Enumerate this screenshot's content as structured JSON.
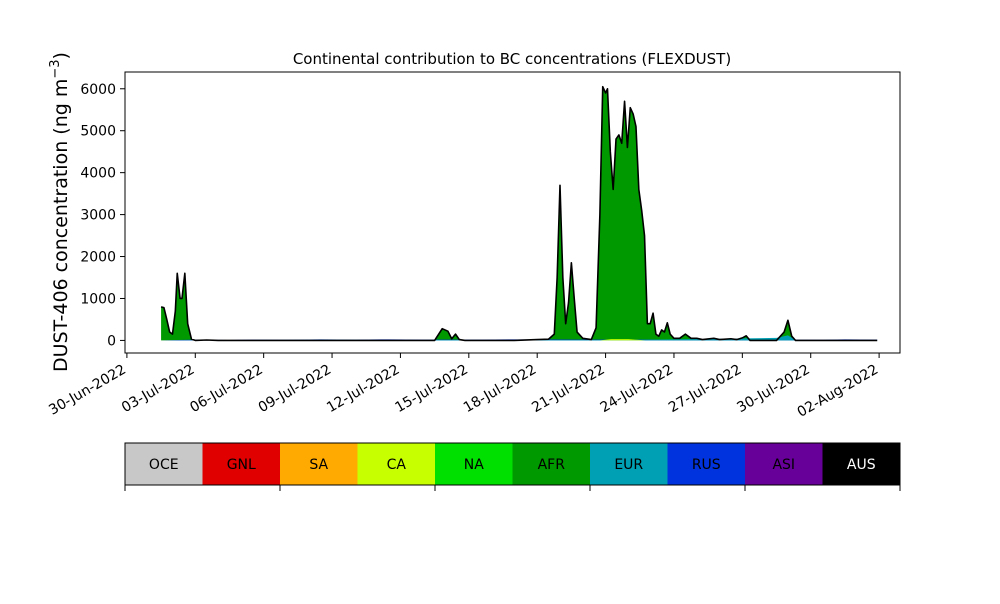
{
  "chart_data": {
    "type": "area",
    "title": "Continental contribution to BC concentrations (FLEXDUST)",
    "ylabel": "DUST-406 concentration (ng m",
    "ylabel_superscript": "−3",
    "ylabel_suffix": ")",
    "ylim": [
      -300,
      6400
    ],
    "yticks": [
      0,
      1000,
      2000,
      3000,
      4000,
      5000,
      6000
    ],
    "xlim": [
      "2022-06-29T22:00",
      "2022-08-02T22:00"
    ],
    "xticks": [
      "2022-06-30",
      "2022-07-03",
      "2022-07-06",
      "2022-07-09",
      "2022-07-12",
      "2022-07-15",
      "2022-07-18",
      "2022-07-21",
      "2022-07-24",
      "2022-07-27",
      "2022-07-30",
      "2022-08-02"
    ],
    "xtick_labels": [
      "30-Jun-2022",
      "03-Jul-2022",
      "06-Jul-2022",
      "09-Jul-2022",
      "12-Jul-2022",
      "15-Jul-2022",
      "18-Jul-2022",
      "21-Jul-2022",
      "24-Jul-2022",
      "27-Jul-2022",
      "30-Jul-2022",
      "02-Aug-2022"
    ],
    "grid": false,
    "legend": {
      "placement": "below",
      "entries": [
        {
          "name": "OCE",
          "color": "#c8c8c8",
          "text_color": "#000000"
        },
        {
          "name": "GNL",
          "color": "#e00000",
          "text_color": "#000000"
        },
        {
          "name": "SA",
          "color": "#ffaa00",
          "text_color": "#000000"
        },
        {
          "name": "CA",
          "color": "#c8ff00",
          "text_color": "#000000"
        },
        {
          "name": "NA",
          "color": "#00e000",
          "text_color": "#000000"
        },
        {
          "name": "AFR",
          "color": "#009a00",
          "text_color": "#000000"
        },
        {
          "name": "EUR",
          "color": "#00a0b4",
          "text_color": "#000000"
        },
        {
          "name": "RUS",
          "color": "#0033dd",
          "text_color": "#000000"
        },
        {
          "name": "ASI",
          "color": "#660099",
          "text_color": "#000000"
        },
        {
          "name": "AUS",
          "color": "#000000",
          "text_color": "#ffffff"
        }
      ]
    },
    "series": [
      {
        "name": "AFR",
        "color": "#009a00",
        "points": [
          [
            "2022-07-01T12:00",
            800
          ],
          [
            "2022-07-01T15:00",
            780
          ],
          [
            "2022-07-01T18:00",
            500
          ],
          [
            "2022-07-01T21:00",
            200
          ],
          [
            "2022-07-02T00:00",
            150
          ],
          [
            "2022-07-02T03:00",
            700
          ],
          [
            "2022-07-02T05:00",
            1600
          ],
          [
            "2022-07-02T08:00",
            1000
          ],
          [
            "2022-07-02T10:00",
            1000
          ],
          [
            "2022-07-02T13:00",
            1600
          ],
          [
            "2022-07-02T16:00",
            400
          ],
          [
            "2022-07-02T20:00",
            30
          ],
          [
            "2022-07-03T00:00",
            0
          ],
          [
            "2022-07-03T12:00",
            10
          ],
          [
            "2022-07-04T00:00",
            0
          ],
          [
            "2022-07-06T00:00",
            0
          ],
          [
            "2022-07-09T00:00",
            0
          ],
          [
            "2022-07-12T00:00",
            0
          ],
          [
            "2022-07-13T12:00",
            0
          ],
          [
            "2022-07-13T20:00",
            280
          ],
          [
            "2022-07-14T02:00",
            220
          ],
          [
            "2022-07-14T06:00",
            40
          ],
          [
            "2022-07-14T10:00",
            150
          ],
          [
            "2022-07-14T14:00",
            20
          ],
          [
            "2022-07-14T20:00",
            0
          ],
          [
            "2022-07-17T00:00",
            0
          ],
          [
            "2022-07-18T00:00",
            20
          ],
          [
            "2022-07-18T12:00",
            30
          ],
          [
            "2022-07-18T18:00",
            150
          ],
          [
            "2022-07-18T21:00",
            1500
          ],
          [
            "2022-07-19T00:00",
            3700
          ],
          [
            "2022-07-19T03:00",
            1500
          ],
          [
            "2022-07-19T06:00",
            400
          ],
          [
            "2022-07-19T09:00",
            900
          ],
          [
            "2022-07-19T12:00",
            1850
          ],
          [
            "2022-07-19T15:00",
            1000
          ],
          [
            "2022-07-19T18:00",
            200
          ],
          [
            "2022-07-20T00:00",
            50
          ],
          [
            "2022-07-20T09:00",
            20
          ],
          [
            "2022-07-20T14:00",
            300
          ],
          [
            "2022-07-20T18:00",
            3000
          ],
          [
            "2022-07-20T21:00",
            6050
          ],
          [
            "2022-07-21T00:00",
            5900
          ],
          [
            "2022-07-21T02:00",
            6000
          ],
          [
            "2022-07-21T05:00",
            4500
          ],
          [
            "2022-07-21T08:00",
            3600
          ],
          [
            "2022-07-21T11:00",
            4800
          ],
          [
            "2022-07-21T14:00",
            4900
          ],
          [
            "2022-07-21T17:00",
            4700
          ],
          [
            "2022-07-21T20:00",
            5700
          ],
          [
            "2022-07-21T23:00",
            4600
          ],
          [
            "2022-07-22T02:00",
            5550
          ],
          [
            "2022-07-22T05:00",
            5400
          ],
          [
            "2022-07-22T08:00",
            5100
          ],
          [
            "2022-07-22T11:00",
            3600
          ],
          [
            "2022-07-22T14:00",
            3100
          ],
          [
            "2022-07-22T17:00",
            2500
          ],
          [
            "2022-07-22T20:00",
            400
          ],
          [
            "2022-07-22T23:00",
            400
          ],
          [
            "2022-07-23T02:00",
            650
          ],
          [
            "2022-07-23T05:00",
            150
          ],
          [
            "2022-07-23T08:00",
            100
          ],
          [
            "2022-07-23T11:00",
            250
          ],
          [
            "2022-07-23T14:00",
            200
          ],
          [
            "2022-07-23T17:00",
            420
          ],
          [
            "2022-07-23T20:00",
            150
          ],
          [
            "2022-07-24T00:00",
            50
          ],
          [
            "2022-07-24T06:00",
            50
          ],
          [
            "2022-07-24T12:00",
            150
          ],
          [
            "2022-07-24T18:00",
            50
          ],
          [
            "2022-07-25T00:00",
            50
          ],
          [
            "2022-07-25T06:00",
            20
          ],
          [
            "2022-07-25T18:00",
            50
          ],
          [
            "2022-07-26T00:00",
            20
          ],
          [
            "2022-07-26T12:00",
            40
          ],
          [
            "2022-07-26T18:00",
            20
          ],
          [
            "2022-07-27T00:00",
            60
          ],
          [
            "2022-07-27T04:00",
            110
          ],
          [
            "2022-07-27T08:00",
            0
          ],
          [
            "2022-07-28T12:00",
            0
          ],
          [
            "2022-07-28T20:00",
            200
          ],
          [
            "2022-07-29T00:00",
            480
          ],
          [
            "2022-07-29T04:00",
            100
          ],
          [
            "2022-07-29T08:00",
            0
          ],
          [
            "2022-08-01T00:00",
            0
          ],
          [
            "2022-08-01T22:00",
            0
          ]
        ]
      },
      {
        "name": "RUS",
        "color": "#0033dd",
        "points": [
          [
            "2022-07-01T12:00",
            0
          ],
          [
            "2022-07-03T00:00",
            20
          ],
          [
            "2022-07-04T12:00",
            10
          ],
          [
            "2022-07-05T12:00",
            20
          ],
          [
            "2022-07-07T00:00",
            15
          ],
          [
            "2022-07-08T12:00",
            25
          ],
          [
            "2022-07-10T00:00",
            20
          ],
          [
            "2022-07-11T12:00",
            25
          ],
          [
            "2022-07-13T00:00",
            20
          ],
          [
            "2022-07-15T12:00",
            20
          ],
          [
            "2022-07-17T00:00",
            25
          ],
          [
            "2022-07-20T00:00",
            20
          ],
          [
            "2022-07-24T12:00",
            20
          ],
          [
            "2022-07-26T12:00",
            25
          ],
          [
            "2022-07-28T00:00",
            20
          ],
          [
            "2022-07-30T12:00",
            15
          ],
          [
            "2022-07-31T12:00",
            25
          ],
          [
            "2022-08-01T22:00",
            20
          ]
        ]
      },
      {
        "name": "EUR",
        "color": "#00a0b4",
        "points": [
          [
            "2022-07-01T12:00",
            0
          ],
          [
            "2022-07-06T00:00",
            10
          ],
          [
            "2022-07-09T00:00",
            15
          ],
          [
            "2022-07-12T00:00",
            10
          ],
          [
            "2022-07-16T00:00",
            10
          ],
          [
            "2022-07-22T00:00",
            10
          ],
          [
            "2022-07-28T12:00",
            60
          ],
          [
            "2022-07-29T00:00",
            120
          ],
          [
            "2022-07-29T08:00",
            10
          ],
          [
            "2022-08-01T22:00",
            10
          ]
        ]
      },
      {
        "name": "CA",
        "color": "#c8ff00",
        "points": [
          [
            "2022-07-01T12:00",
            0
          ],
          [
            "2022-07-20T18:00",
            0
          ],
          [
            "2022-07-21T06:00",
            30
          ],
          [
            "2022-07-22T00:00",
            30
          ],
          [
            "2022-07-22T18:00",
            0
          ],
          [
            "2022-08-01T22:00",
            0
          ]
        ]
      }
    ]
  }
}
